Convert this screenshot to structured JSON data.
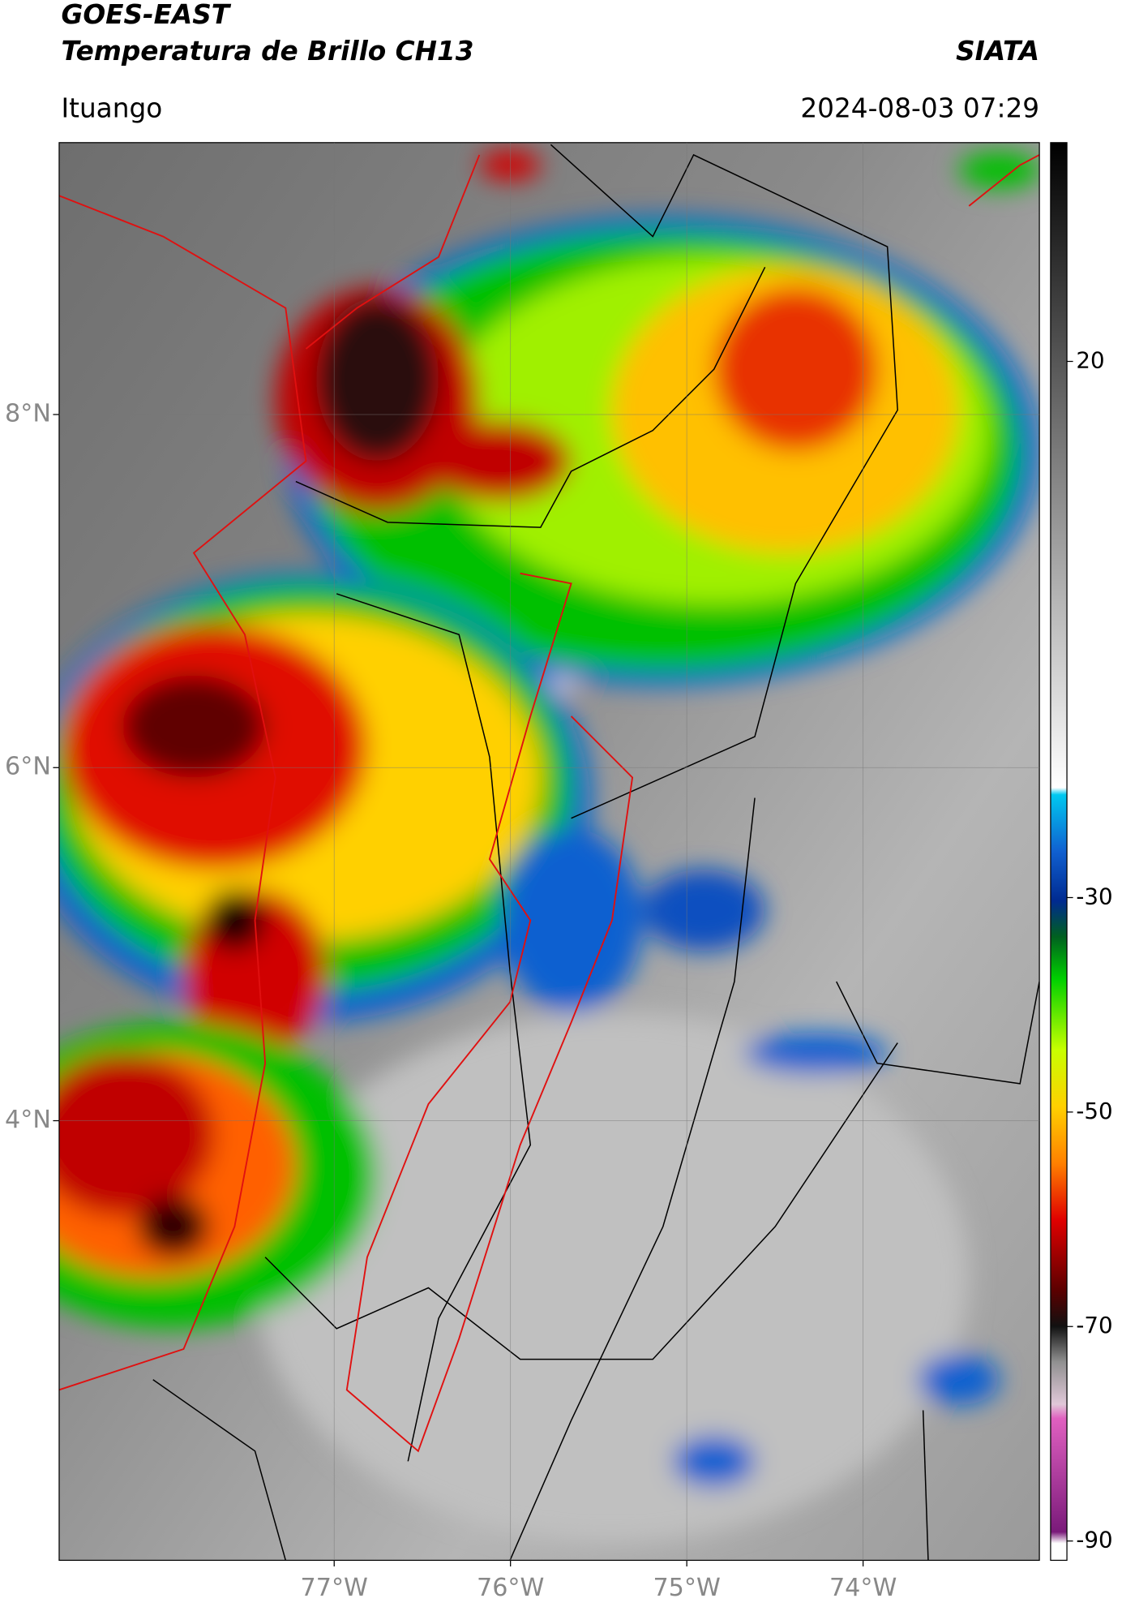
{
  "chart_data": {
    "type": "map",
    "title": "GOES-EAST",
    "subtitle": "Temperatura de Brillo CH13",
    "source": "SIATA",
    "location": "Ituango",
    "datetime": "2024-08-03 07:29",
    "xlim": [
      -78.56,
      -73.0
    ],
    "ylim": [
      1.51,
      9.54
    ],
    "xticks": [
      {
        "value": -77,
        "label": "77°W"
      },
      {
        "value": -76,
        "label": "76°W"
      },
      {
        "value": -75,
        "label": "75°W"
      },
      {
        "value": -74,
        "label": "74°W"
      }
    ],
    "yticks": [
      {
        "value": 4,
        "label": "4°N"
      },
      {
        "value": 6,
        "label": "6°N"
      },
      {
        "value": 8,
        "label": "8°N"
      }
    ],
    "grid": true,
    "colorbar": {
      "lim": [
        -91.8,
        40.4
      ],
      "ticks": [
        20,
        -30,
        -50,
        -70,
        -90
      ]
    }
  }
}
